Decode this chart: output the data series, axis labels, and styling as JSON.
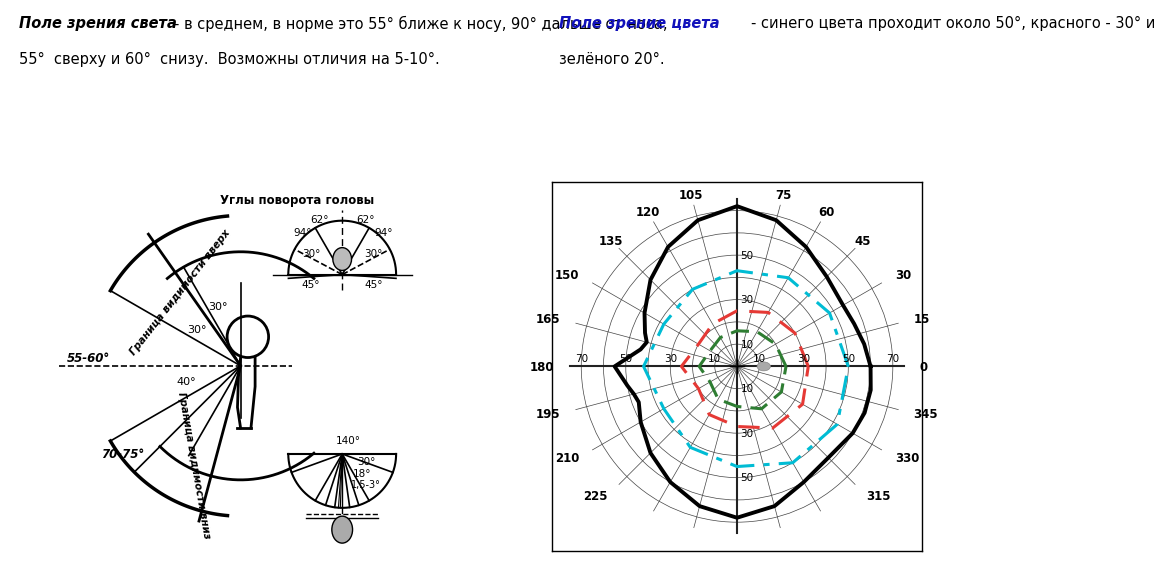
{
  "title_left_bold": "Поле зрения света",
  "title_left_rest": " – в среднем, в норме это 55° ближе к носу, 90° дальше от носа, 55°  сверху и 60°  снизу.  Возможны отличия на 5-10°.",
  "title_right_bold": "Поле зрение цвета",
  "title_right_rest": " - синего цвета проходит около 50°, красного - 30° и зелёного 20°.",
  "bg_color": "#ffffff",
  "chart_bg": "#e8e4d8",
  "black_field_angles_deg": [
    0,
    10,
    20,
    30,
    45,
    60,
    75,
    90,
    105,
    120,
    135,
    150,
    160,
    165,
    170,
    180,
    190,
    195,
    200,
    210,
    225,
    240,
    255,
    270,
    285,
    300,
    315,
    330,
    340,
    350,
    360
  ],
  "black_field_radii": [
    60,
    58,
    56,
    55,
    57,
    62,
    68,
    72,
    68,
    62,
    55,
    48,
    44,
    42,
    44,
    55,
    50,
    48,
    47,
    50,
    55,
    60,
    65,
    68,
    65,
    60,
    58,
    60,
    61,
    61,
    60
  ],
  "blue_field_angles_deg": [
    0,
    30,
    60,
    90,
    120,
    150,
    180,
    210,
    240,
    270,
    300,
    330,
    360
  ],
  "blue_field_radii": [
    50,
    48,
    46,
    43,
    40,
    38,
    42,
    38,
    42,
    45,
    50,
    52,
    50
  ],
  "red_field_angles_deg": [
    0,
    30,
    60,
    90,
    120,
    150,
    180,
    210,
    240,
    270,
    300,
    330,
    360
  ],
  "red_field_radii": [
    32,
    30,
    28,
    25,
    22,
    20,
    25,
    20,
    25,
    27,
    32,
    34,
    32
  ],
  "green_field_angles_deg": [
    0,
    30,
    60,
    90,
    120,
    150,
    180,
    210,
    240,
    270,
    300,
    330,
    360
  ],
  "green_field_radii": [
    22,
    20,
    18,
    16,
    15,
    14,
    17,
    14,
    17,
    18,
    22,
    23,
    22
  ],
  "black_color": "#000000",
  "blue_color": "#00bcd4",
  "red_color": "#e53935",
  "green_color": "#2e7d32"
}
